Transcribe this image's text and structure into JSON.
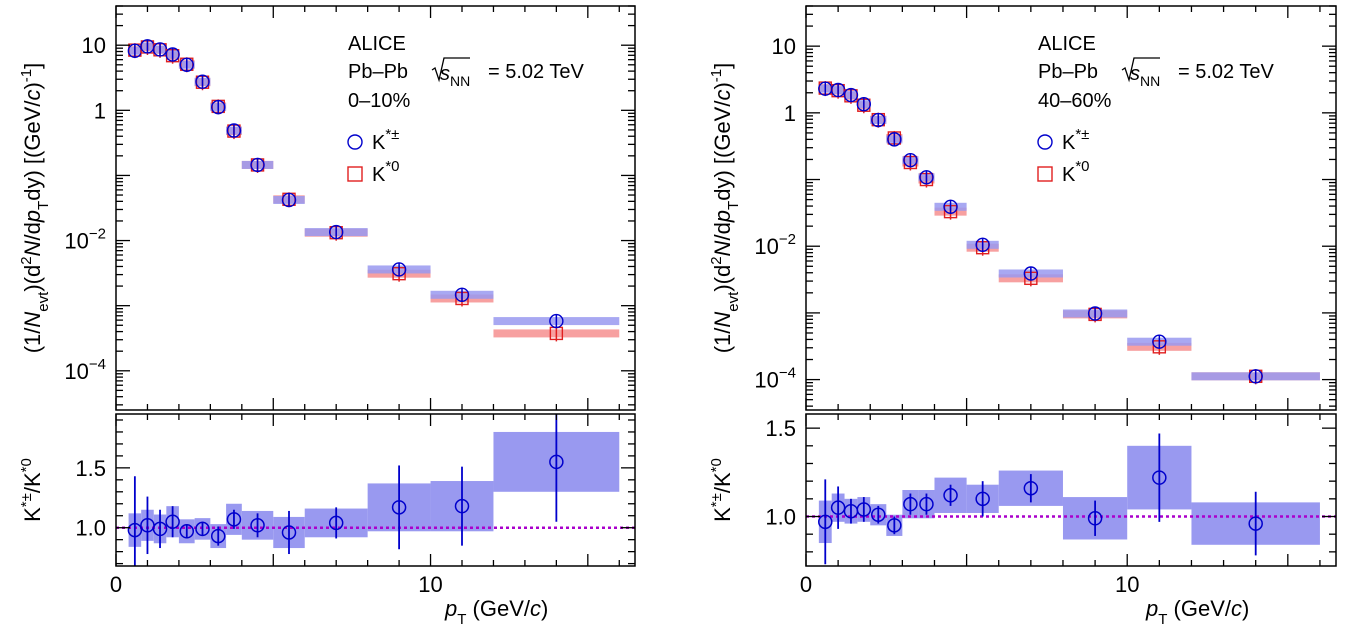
{
  "chart_data": [
    {
      "type": "scatter",
      "annotation": {
        "experiment": "ALICE",
        "system": "Pb–Pb",
        "energy_var": "s",
        "energy_sub": "NN",
        "energy_value": "= 5.02 TeV",
        "centrality": "0–10%"
      },
      "legend": [
        {
          "label": "K",
          "sup": "*±",
          "marker": "circle",
          "color": "#0000cc"
        },
        {
          "label": "K",
          "sup": "*0",
          "marker": "square",
          "color": "#e02020"
        }
      ],
      "ylabel_spectrum": "(1/N_evt)(d²N/dp_T dy) [(GeV/c)⁻¹]",
      "ylabel_ratio": "K*±/K*0",
      "xlabel": "p_T (GeV/c)",
      "xlim": [
        0,
        16.5
      ],
      "ylim_spectrum": [
        2.5e-05,
        40
      ],
      "yscale_spectrum": "log",
      "ylim_ratio": [
        0.68,
        1.95
      ],
      "yticks_ratio": [
        "1.0",
        "1.5"
      ],
      "xticks": [
        "0",
        "10"
      ],
      "ytick_labels_spectrum": [
        {
          "v": 10,
          "text": "10"
        },
        {
          "v": 1,
          "text": "1"
        },
        {
          "v": 0.01,
          "base": "10",
          "exp": "−2"
        },
        {
          "v": 0.0001,
          "base": "10",
          "exp": "−4"
        }
      ],
      "bins": [
        {
          "x": 0.6,
          "lo": 0.4,
          "hi": 0.8,
          "kch": 8.2,
          "k0": 8.4,
          "ratio": 0.98,
          "rerr": 0.45,
          "rsys": 0.14
        },
        {
          "x": 1.0,
          "lo": 0.8,
          "hi": 1.2,
          "kch": 9.6,
          "k0": 9.4,
          "ratio": 1.02,
          "rerr": 0.24,
          "rsys": 0.13
        },
        {
          "x": 1.4,
          "lo": 1.2,
          "hi": 1.6,
          "kch": 8.6,
          "k0": 8.5,
          "ratio": 0.99,
          "rerr": 0.16,
          "rsys": 0.12
        },
        {
          "x": 1.8,
          "lo": 1.6,
          "hi": 2.0,
          "kch": 7.2,
          "k0": 6.9,
          "ratio": 1.05,
          "rerr": 0.13,
          "rsys": 0.13
        },
        {
          "x": 2.25,
          "lo": 2.0,
          "hi": 2.5,
          "kch": 5.0,
          "k0": 5.1,
          "ratio": 0.97,
          "rerr": 0.06,
          "rsys": 0.1
        },
        {
          "x": 2.75,
          "lo": 2.5,
          "hi": 3.0,
          "kch": 2.75,
          "k0": 2.7,
          "ratio": 0.99,
          "rerr": 0.06,
          "rsys": 0.09
        },
        {
          "x": 3.25,
          "lo": 3.0,
          "hi": 3.5,
          "kch": 1.12,
          "k0": 1.15,
          "ratio": 0.93,
          "rerr": 0.08,
          "rsys": 0.1
        },
        {
          "x": 3.75,
          "lo": 3.5,
          "hi": 4.0,
          "kch": 0.49,
          "k0": 0.48,
          "ratio": 1.07,
          "rerr": 0.08,
          "rsys": 0.13
        },
        {
          "x": 4.5,
          "lo": 4.0,
          "hi": 5.0,
          "kch": 0.145,
          "k0": 0.145,
          "ratio": 1.02,
          "rerr": 0.1,
          "rsys": 0.12
        },
        {
          "x": 5.5,
          "lo": 5.0,
          "hi": 6.0,
          "kch": 0.042,
          "k0": 0.043,
          "ratio": 0.96,
          "rerr": 0.18,
          "rsys": 0.13
        },
        {
          "x": 7.0,
          "lo": 6.0,
          "hi": 8.0,
          "kch": 0.0135,
          "k0": 0.0132,
          "ratio": 1.04,
          "rerr": 0.13,
          "rsys": 0.12
        },
        {
          "x": 9.0,
          "lo": 8.0,
          "hi": 10.0,
          "kch": 0.0036,
          "k0": 0.0031,
          "ratio": 1.17,
          "rerr": 0.35,
          "rsys": 0.2
        },
        {
          "x": 11.0,
          "lo": 10.0,
          "hi": 12.0,
          "kch": 0.00147,
          "k0": 0.00129,
          "ratio": 1.18,
          "rerr": 0.33,
          "rsys": 0.21
        },
        {
          "x": 14.0,
          "lo": 12.0,
          "hi": 16.0,
          "kch": 0.00058,
          "k0": 0.000375,
          "ratio": 1.55,
          "rerr": 0.5,
          "rsys": 0.25
        }
      ]
    },
    {
      "type": "scatter",
      "annotation": {
        "experiment": "ALICE",
        "system": "Pb–Pb",
        "energy_var": "s",
        "energy_sub": "NN",
        "energy_value": "= 5.02 TeV",
        "centrality": "40–60%"
      },
      "legend": [
        {
          "label": "K",
          "sup": "*±",
          "marker": "circle",
          "color": "#0000cc"
        },
        {
          "label": "K",
          "sup": "*0",
          "marker": "square",
          "color": "#e02020"
        }
      ],
      "ylabel_spectrum": "(1/N_evt)(d²N/dp_T dy) [(GeV/c)⁻¹]",
      "ylabel_ratio": "K*±/K*0",
      "xlabel": "p_T (GeV/c)",
      "xlim": [
        0,
        16.5
      ],
      "ylim_spectrum": [
        3.5e-05,
        40
      ],
      "yscale_spectrum": "log",
      "ylim_ratio": [
        0.72,
        1.58
      ],
      "yticks_ratio": [
        "1.0",
        "1.5"
      ],
      "xticks": [
        "0",
        "10"
      ],
      "ytick_labels_spectrum": [
        {
          "v": 10,
          "text": "10"
        },
        {
          "v": 1,
          "text": "1"
        },
        {
          "v": 0.01,
          "base": "10",
          "exp": "−2"
        },
        {
          "v": 0.0001,
          "base": "10",
          "exp": "−4"
        }
      ],
      "bins": [
        {
          "x": 0.6,
          "lo": 0.4,
          "hi": 0.8,
          "kch": 2.3,
          "k0": 2.35,
          "ratio": 0.97,
          "rerr": 0.24,
          "rsys": 0.12
        },
        {
          "x": 1.0,
          "lo": 0.8,
          "hi": 1.2,
          "kch": 2.2,
          "k0": 2.15,
          "ratio": 1.05,
          "rerr": 0.12,
          "rsys": 0.08
        },
        {
          "x": 1.4,
          "lo": 1.2,
          "hi": 1.6,
          "kch": 1.85,
          "k0": 1.8,
          "ratio": 1.03,
          "rerr": 0.07,
          "rsys": 0.07
        },
        {
          "x": 1.8,
          "lo": 1.6,
          "hi": 2.0,
          "kch": 1.35,
          "k0": 1.3,
          "ratio": 1.04,
          "rerr": 0.07,
          "rsys": 0.07
        },
        {
          "x": 2.25,
          "lo": 2.0,
          "hi": 2.5,
          "kch": 0.78,
          "k0": 0.79,
          "ratio": 1.01,
          "rerr": 0.05,
          "rsys": 0.06
        },
        {
          "x": 2.75,
          "lo": 2.5,
          "hi": 3.0,
          "kch": 0.4,
          "k0": 0.42,
          "ratio": 0.95,
          "rerr": 0.05,
          "rsys": 0.06
        },
        {
          "x": 3.25,
          "lo": 3.0,
          "hi": 3.5,
          "kch": 0.195,
          "k0": 0.18,
          "ratio": 1.07,
          "rerr": 0.06,
          "rsys": 0.08
        },
        {
          "x": 3.75,
          "lo": 3.5,
          "hi": 4.0,
          "kch": 0.108,
          "k0": 0.1,
          "ratio": 1.07,
          "rerr": 0.06,
          "rsys": 0.08
        },
        {
          "x": 4.5,
          "lo": 4.0,
          "hi": 5.0,
          "kch": 0.039,
          "k0": 0.033,
          "ratio": 1.12,
          "rerr": 0.06,
          "rsys": 0.1
        },
        {
          "x": 5.5,
          "lo": 5.0,
          "hi": 6.0,
          "kch": 0.0105,
          "k0": 0.0095,
          "ratio": 1.1,
          "rerr": 0.1,
          "rsys": 0.08
        },
        {
          "x": 7.0,
          "lo": 6.0,
          "hi": 8.0,
          "kch": 0.0039,
          "k0": 0.0033,
          "ratio": 1.16,
          "rerr": 0.08,
          "rsys": 0.1
        },
        {
          "x": 9.0,
          "lo": 8.0,
          "hi": 10.0,
          "kch": 0.00098,
          "k0": 0.00095,
          "ratio": 0.99,
          "rerr": 0.1,
          "rsys": 0.12
        },
        {
          "x": 11.0,
          "lo": 10.0,
          "hi": 12.0,
          "kch": 0.00037,
          "k0": 0.00031,
          "ratio": 1.22,
          "rerr": 0.25,
          "rsys": 0.18
        },
        {
          "x": 14.0,
          "lo": 12.0,
          "hi": 16.0,
          "kch": 0.000112,
          "k0": 0.000112,
          "ratio": 0.96,
          "rerr": 0.18,
          "rsys": 0.12
        }
      ]
    }
  ],
  "colors": {
    "kch": "#0000cc",
    "k0": "#e02020",
    "kch_sys": "#9999f0",
    "k0_sys": "#f7a0a0",
    "unity_line": "#aa00cc"
  }
}
